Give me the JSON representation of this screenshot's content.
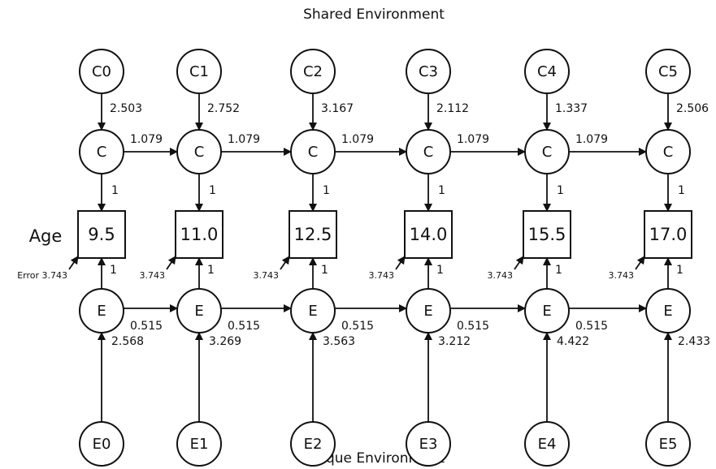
{
  "header": {
    "title": "Shared Environment"
  },
  "footer": {
    "title": "Unique Environment"
  },
  "row_label": "Age",
  "columns": [
    {
      "shared_source": "C0",
      "shared_path": "2.503",
      "shared": "C",
      "shared_to_age": "1",
      "age": "9.5",
      "error": "Error 3.743",
      "unique": "E",
      "unique_to_age": "1",
      "unique_source": "E0",
      "unique_path": "2.568"
    },
    {
      "shared_source": "C1",
      "shared_path": "2.752",
      "shared": "C",
      "shared_to_age": "1",
      "age": "11.0",
      "error": "3.743",
      "unique": "E",
      "unique_to_age": "1",
      "unique_source": "E1",
      "unique_path": "3.269"
    },
    {
      "shared_source": "C2",
      "shared_path": "3.167",
      "shared": "C",
      "shared_to_age": "1",
      "age": "12.5",
      "error": "3.743",
      "unique": "E",
      "unique_to_age": "1",
      "unique_source": "E2",
      "unique_path": "3.563"
    },
    {
      "shared_source": "C3",
      "shared_path": "2.112",
      "shared": "C",
      "shared_to_age": "1",
      "age": "14.0",
      "error": "3.743",
      "unique": "E",
      "unique_to_age": "1",
      "unique_source": "E3",
      "unique_path": "3.212"
    },
    {
      "shared_source": "C4",
      "shared_path": "1.337",
      "shared": "C",
      "shared_to_age": "1",
      "age": "15.5",
      "error": "3.743",
      "unique": "E",
      "unique_to_age": "1",
      "unique_source": "E4",
      "unique_path": "4.422"
    },
    {
      "shared_source": "C5",
      "shared_path": "2.506",
      "shared": "C",
      "shared_to_age": "1",
      "age": "17.0",
      "error": "3.743",
      "unique": "E",
      "unique_to_age": "1",
      "unique_source": "E5",
      "unique_path": "2.433"
    }
  ],
  "shared_links": [
    "1.079",
    "1.079",
    "1.079",
    "1.079",
    "1.079"
  ],
  "unique_links": [
    "0.515",
    "0.515",
    "0.515",
    "0.515",
    "0.515"
  ]
}
